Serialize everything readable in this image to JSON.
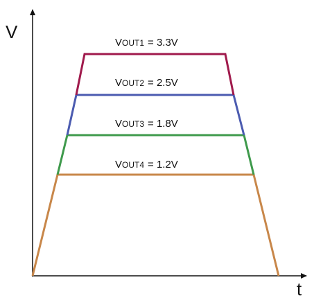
{
  "axes": {
    "y_label": "V",
    "x_label": "t"
  },
  "levels": [
    {
      "symbol": "V",
      "subscript": "OUT1",
      "rest": "= 3.3V"
    },
    {
      "symbol": "V",
      "subscript": "OUT2",
      "rest": "= 2.5V"
    },
    {
      "symbol": "V",
      "subscript": "OUT3",
      "rest": "= 1.8V"
    },
    {
      "symbol": "V",
      "subscript": "OUT4",
      "rest": "= 1.2V"
    }
  ]
}
